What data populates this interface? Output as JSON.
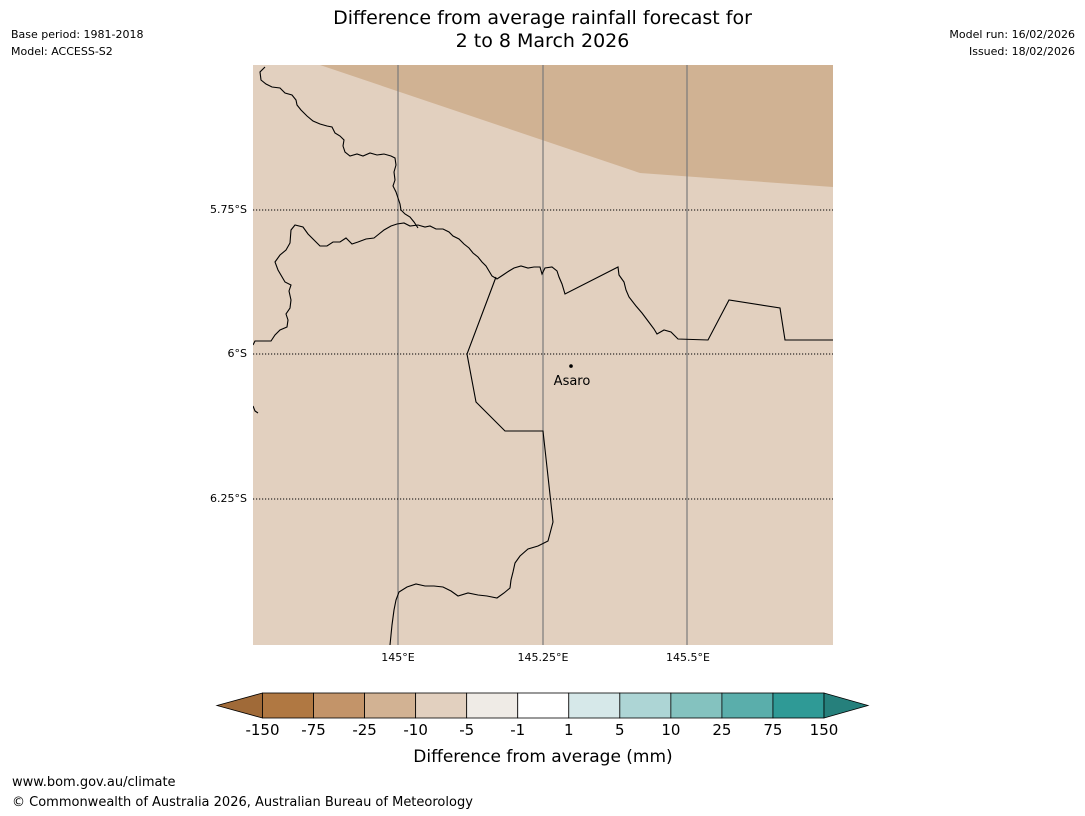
{
  "header": {
    "base_period": "Base period: 1981-2018",
    "model": "Model: ACCESS-S2",
    "model_run": "Model run: 16/02/2026",
    "issued": "Issued: 18/02/2026"
  },
  "title": {
    "line1": "Difference from average rainfall forecast for",
    "line2": "2 to 8 March 2026"
  },
  "map": {
    "lat_labels": [
      "5.75°S",
      "6°S",
      "6.25°S"
    ],
    "lon_labels": [
      "145°E",
      "145.25°E",
      "145.5°E"
    ],
    "place": {
      "name": "Asaro",
      "lat": -6.02,
      "lon": 145.3
    },
    "colors": {
      "background_class": "#e2d0bf",
      "drier_class": "#d0b293",
      "border": "#000000",
      "meridian": "#7a7a7a"
    }
  },
  "legend": {
    "label": "Difference from average (mm)",
    "ticks": [
      "-150",
      "-75",
      "-25",
      "-10",
      "-5",
      "-1",
      "1",
      "5",
      "10",
      "25",
      "75",
      "150"
    ],
    "colors": [
      "#a06a38",
      "#b07842",
      "#c39469",
      "#d2b293",
      "#e2d0bf",
      "#efebe6",
      "#ffffff",
      "#d6e8e9",
      "#add5d5",
      "#84c2bf",
      "#5aaeab",
      "#2f9a96",
      "#26807c"
    ]
  },
  "footer": {
    "url": "www.bom.gov.au/climate",
    "copyright": "© Commonwealth of Australia 2026, Australian Bureau of Meteorology"
  }
}
